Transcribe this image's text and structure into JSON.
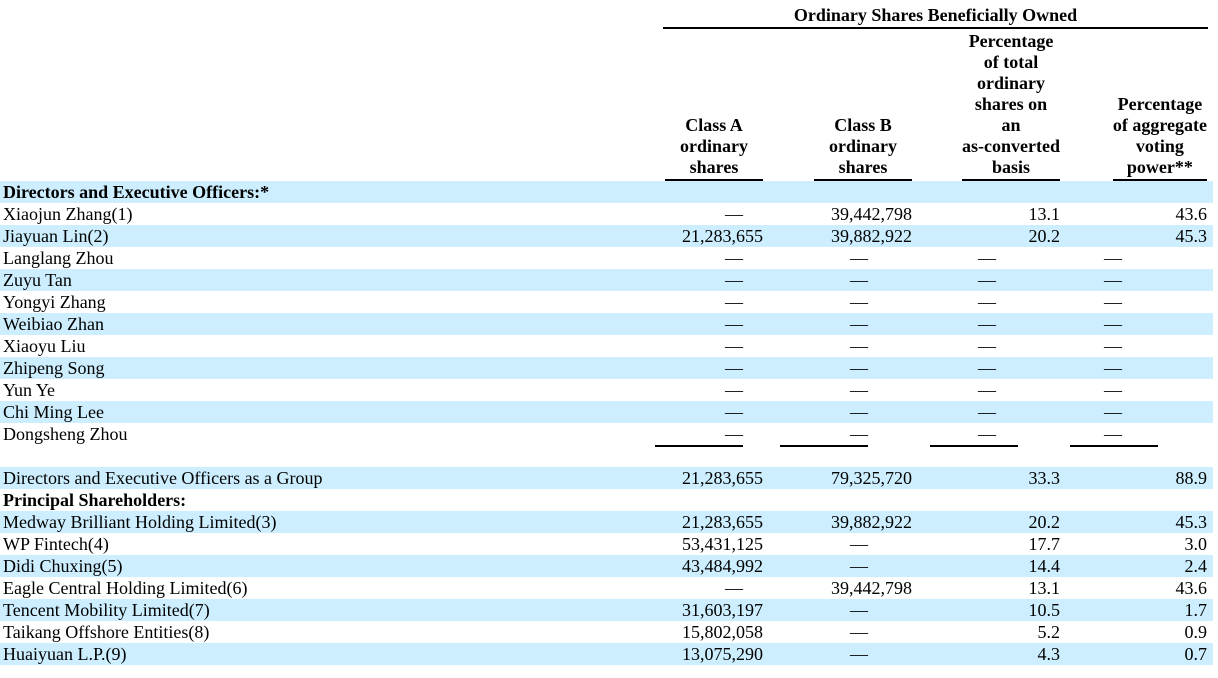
{
  "colors": {
    "row_stripe": "#cceeff",
    "text": "#000000",
    "rule": "#000000"
  },
  "table": {
    "spanner": "Ordinary Shares Beneficially Owned",
    "columns": [
      {
        "id": "class-a",
        "header": "Class A\nordinary\nshares"
      },
      {
        "id": "class-b",
        "header": "Class B\nordinary\nshares"
      },
      {
        "id": "pct-as-converted",
        "header": "Percentage\nof total\nordinary\nshares on\nan\nas-converted\nbasis"
      },
      {
        "id": "pct-voting-power",
        "header": "Percentage\nof aggregate\nvoting\npower**"
      }
    ],
    "rows": [
      {
        "name": "Directors and Executive Officers:*",
        "bold": true,
        "shade": true,
        "values": [
          "",
          "",
          "",
          ""
        ]
      },
      {
        "name": "Xiaojun Zhang(1)",
        "values": [
          "—",
          "39,442,798",
          "13.1",
          "43.6"
        ]
      },
      {
        "name": "Jiayuan Lin(2)",
        "shade": true,
        "values": [
          "21,283,655",
          "39,882,922",
          "20.2",
          "45.3"
        ]
      },
      {
        "name": "Langlang Zhou",
        "values": [
          "—",
          "—",
          "—",
          "—"
        ]
      },
      {
        "name": "Zuyu Tan",
        "shade": true,
        "values": [
          "—",
          "—",
          "—",
          "—"
        ]
      },
      {
        "name": "Yongyi Zhang",
        "values": [
          "—",
          "—",
          "—",
          "—"
        ]
      },
      {
        "name": "Weibiao Zhan",
        "shade": true,
        "values": [
          "—",
          "—",
          "—",
          "—"
        ]
      },
      {
        "name": "Xiaoyu Liu",
        "values": [
          "—",
          "—",
          "—",
          "—"
        ]
      },
      {
        "name": "Zhipeng Song",
        "shade": true,
        "values": [
          "—",
          "—",
          "—",
          "—"
        ]
      },
      {
        "name": "Yun Ye",
        "values": [
          "—",
          "—",
          "—",
          "—"
        ]
      },
      {
        "name": "Chi Ming Lee",
        "shade": true,
        "values": [
          "—",
          "—",
          "—",
          "—"
        ]
      },
      {
        "name": "Dongsheng Zhou",
        "values": [
          "—",
          "—",
          "—",
          "—"
        ]
      },
      {
        "type": "rule"
      },
      {
        "type": "spacer"
      },
      {
        "name": "Directors and Executive Officers as a Group",
        "shade": true,
        "values": [
          "21,283,655",
          "79,325,720",
          "33.3",
          "88.9"
        ]
      },
      {
        "name": "Principal Shareholders:",
        "bold": true,
        "values": [
          "",
          "",
          "",
          ""
        ]
      },
      {
        "name": "Medway Brilliant Holding Limited(3)",
        "shade": true,
        "values": [
          "21,283,655",
          "39,882,922",
          "20.2",
          "45.3"
        ]
      },
      {
        "name": "WP Fintech(4)",
        "values": [
          "53,431,125",
          "—",
          "17.7",
          "3.0"
        ]
      },
      {
        "name": "Didi Chuxing(5)",
        "shade": true,
        "values": [
          "43,484,992",
          "—",
          "14.4",
          "2.4"
        ]
      },
      {
        "name": "Eagle Central Holding Limited(6)",
        "values": [
          "—",
          "39,442,798",
          "13.1",
          "43.6"
        ]
      },
      {
        "name": "Tencent Mobility Limited(7)",
        "shade": true,
        "values": [
          "31,603,197",
          "—",
          "10.5",
          "1.7"
        ]
      },
      {
        "name": "Taikang Offshore Entities(8)",
        "values": [
          "15,802,058",
          "—",
          "5.2",
          "0.9"
        ]
      },
      {
        "name": "Huaiyuan L.P.(9)",
        "shade": true,
        "values": [
          "13,075,290",
          "—",
          "4.3",
          "0.7"
        ]
      }
    ]
  }
}
